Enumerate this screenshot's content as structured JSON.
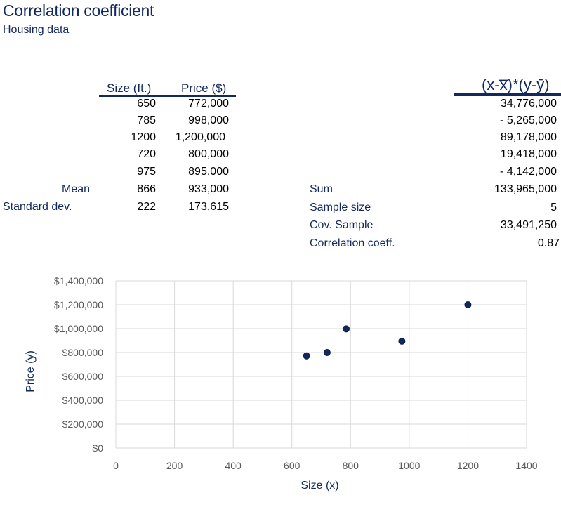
{
  "title": "Correlation coefficient",
  "subtitle": "Housing data",
  "table": {
    "col_size": "Size (ft.)",
    "col_price": "Price ($)",
    "rows": [
      {
        "size": "650",
        "price": "772,000"
      },
      {
        "size": "785",
        "price": "998,000"
      },
      {
        "size": "1200",
        "price": "1,200,000"
      },
      {
        "size": "720",
        "price": "800,000"
      },
      {
        "size": "975",
        "price": "895,000"
      }
    ],
    "mean_label": "Mean",
    "mean_size": "866",
    "mean_price": "933,000",
    "std_label": "Standard dev.",
    "std_size": "222",
    "std_price": "173,615"
  },
  "products": {
    "header": "(x-x̅)*(y-ȳ)",
    "values": [
      "34,776,000",
      "- 5,265,000",
      "89,178,000",
      "19,418,000",
      "- 4,142,000"
    ]
  },
  "stats": [
    {
      "label": "Sum",
      "value": "133,965,000"
    },
    {
      "label": "Sample size",
      "value": "5"
    },
    {
      "label": "Cov. Sample",
      "value": "33,491,250"
    },
    {
      "label": "Correlation coeff.",
      "value": "0.87"
    }
  ],
  "chart_data": {
    "type": "scatter",
    "xlabel": "Size (x)",
    "ylabel": "Price (y)",
    "xlim": [
      0,
      1400
    ],
    "ylim": [
      0,
      1400000
    ],
    "x_ticks": [
      0,
      200,
      400,
      600,
      800,
      1000,
      1200,
      1400
    ],
    "x_tick_labels": [
      "0",
      "200",
      "400",
      "600",
      "800",
      "1000",
      "1200",
      "1400"
    ],
    "y_ticks": [
      0,
      200000,
      400000,
      600000,
      800000,
      1000000,
      1200000,
      1400000
    ],
    "y_tick_labels": [
      "$0",
      "$200,000",
      "$400,000",
      "$600,000",
      "$800,000",
      "$1,000,000",
      "$1,200,000",
      "$1,400,000"
    ],
    "grid": true,
    "points": [
      {
        "x": 650,
        "y": 772000
      },
      {
        "x": 785,
        "y": 998000
      },
      {
        "x": 1200,
        "y": 1200000
      },
      {
        "x": 720,
        "y": 800000
      },
      {
        "x": 975,
        "y": 895000
      }
    ],
    "marker_color": "#12295e",
    "axis_label_color": "#12295e"
  }
}
